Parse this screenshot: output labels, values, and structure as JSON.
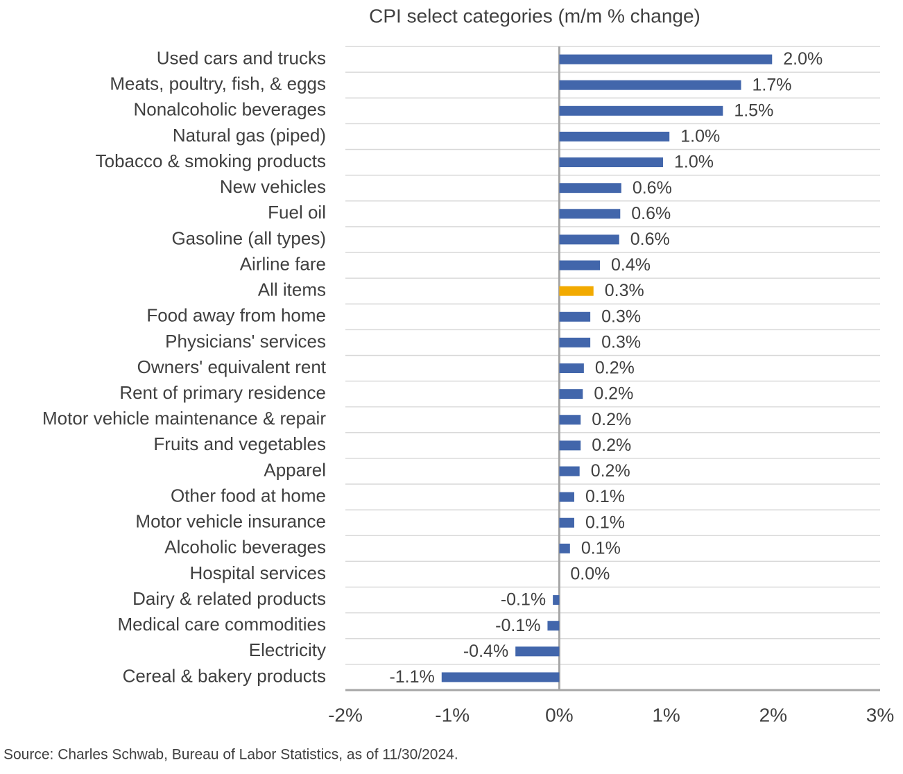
{
  "chart_data": {
    "type": "barh",
    "title": "CPI select categories (m/m % change)",
    "source": "Source: Charles Schwab, Bureau of Labor Statistics, as of 11/30/2024.",
    "categories": [
      "Used cars and trucks",
      "Meats, poultry, fish, & eggs",
      "Nonalcoholic beverages",
      "Natural gas (piped)",
      "Tobacco & smoking products",
      "New vehicles",
      "Fuel oil",
      "Gasoline (all types)",
      "Airline fare",
      "All items",
      "Food away from home",
      "Physicians' services",
      "Owners' equivalent rent",
      "Rent of primary residence",
      "Motor vehicle maintenance & repair",
      "Fruits and vegetables",
      "Apparel",
      "Other food at home",
      "Motor vehicle insurance",
      "Alcoholic beverages",
      "Hospital services",
      "Dairy & related products",
      "Medical care commodities",
      "Electricity",
      "Cereal & bakery products"
    ],
    "values": [
      1.99,
      1.7,
      1.53,
      1.03,
      0.97,
      0.58,
      0.57,
      0.56,
      0.38,
      0.32,
      0.29,
      0.29,
      0.23,
      0.22,
      0.2,
      0.2,
      0.19,
      0.14,
      0.14,
      0.1,
      0,
      -0.06,
      -0.11,
      -0.41,
      -1.1
    ],
    "value_labels": [
      "2.0%",
      "1.7%",
      "1.5%",
      "1.0%",
      "1.0%",
      "0.6%",
      "0.6%",
      "0.6%",
      "0.4%",
      "0.3%",
      "0.3%",
      "0.3%",
      "0.2%",
      "0.2%",
      "0.2%",
      "0.2%",
      "0.2%",
      "0.1%",
      "0.1%",
      "0.1%",
      "0.0%",
      "-0.1%",
      "-0.1%",
      "-0.4%",
      "-1.1%"
    ],
    "colors": [
      "#4266ab",
      "#4266ab",
      "#4266ab",
      "#4266ab",
      "#4266ab",
      "#4266ab",
      "#4266ab",
      "#4266ab",
      "#4266ab",
      "#f2aa00",
      "#4266ab",
      "#4266ab",
      "#4266ab",
      "#4266ab",
      "#4266ab",
      "#4266ab",
      "#4266ab",
      "#4266ab",
      "#4266ab",
      "#4266ab",
      "#4266ab",
      "#4266ab",
      "#4266ab",
      "#4266ab",
      "#4266ab"
    ],
    "xlim": [
      -2,
      3
    ],
    "xticks": [
      {
        "value": -2,
        "label": "-2%"
      },
      {
        "value": -1,
        "label": "-1%"
      },
      {
        "value": 0,
        "label": "0%"
      },
      {
        "value": 1,
        "label": "1%"
      },
      {
        "value": 2,
        "label": "2%"
      },
      {
        "value": 3,
        "label": "3%"
      }
    ]
  }
}
